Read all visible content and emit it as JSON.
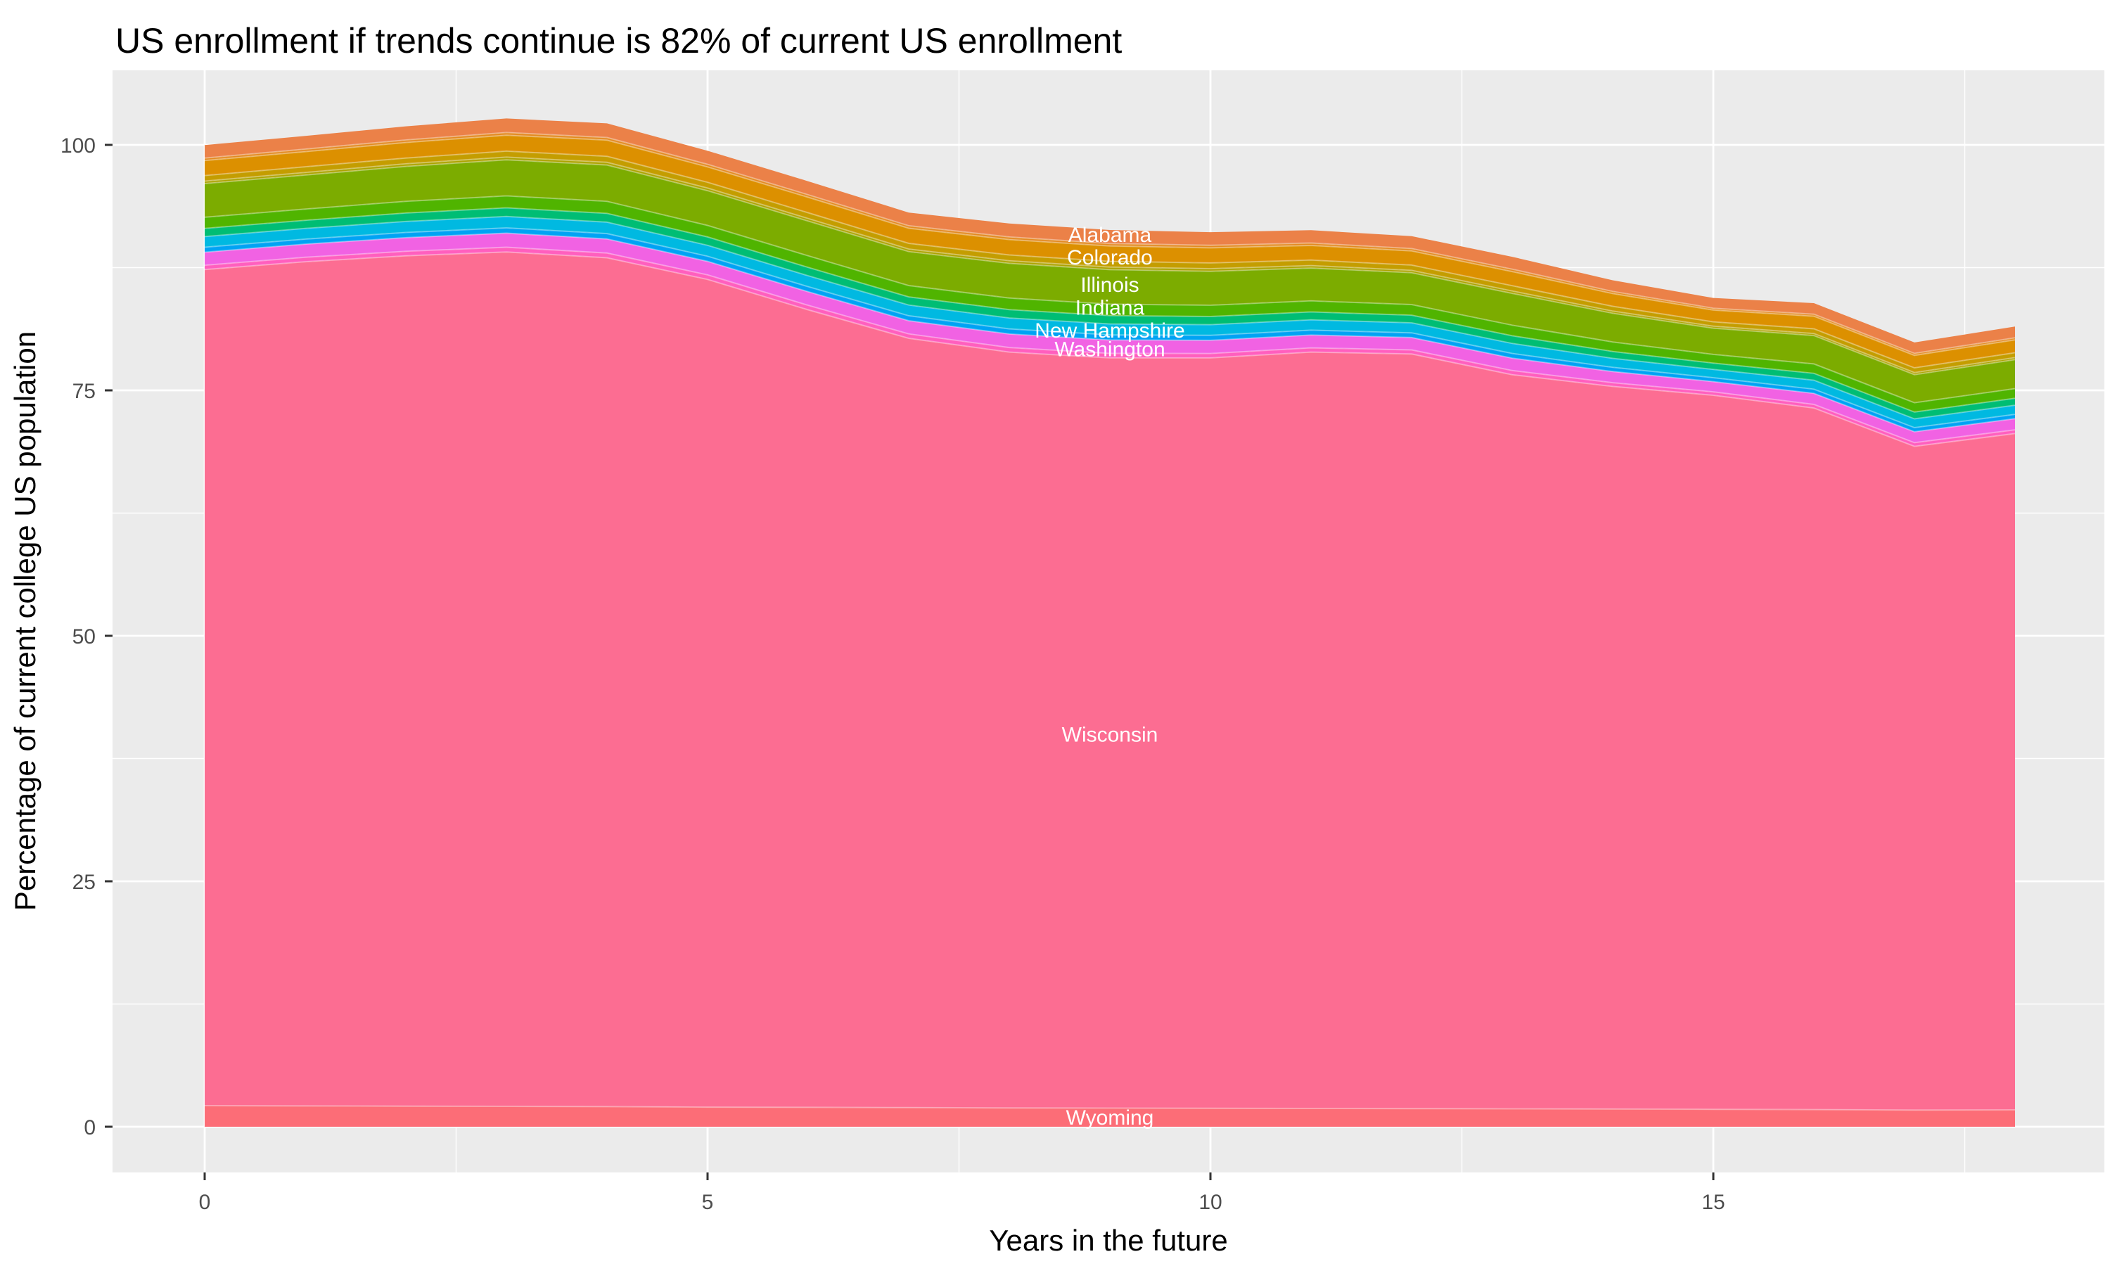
{
  "figure": {
    "title": "US enrollment if trends continue is 82% of current US enrollment",
    "x_axis_title": "Years in the future",
    "y_axis_title": "Percentage of current college US population"
  },
  "colors": {
    "outer_background": "#FFFFFF",
    "panel_background": "#EBEBEB",
    "gridline": "#FFFFFF",
    "tick_mark": "#333333",
    "tick_label": "#4D4D4D",
    "title_text": "#000000",
    "band_separator": "rgba(255,255,255,0.35)",
    "label_text": "#FFFFFF"
  },
  "chart_data": {
    "type": "area",
    "stacked": true,
    "title": "US enrollment if trends continue is 82% of current US enrollment",
    "xlabel": "Years in the future",
    "ylabel": "Percentage of current college US population",
    "x": [
      0,
      1,
      2,
      3,
      4,
      5,
      6,
      7,
      8,
      9,
      10,
      11,
      12,
      13,
      14,
      15,
      16,
      17,
      18
    ],
    "x_ticks": [
      0,
      5,
      10,
      15
    ],
    "y_ticks": [
      0,
      25,
      50,
      75,
      100
    ],
    "x_minor_ticks": [
      2.5,
      7.5,
      12.5,
      17.5
    ],
    "y_minor_ticks": [
      12.5,
      37.5,
      62.5,
      87.5
    ],
    "xlim_display": [
      -0.93,
      19.06
    ],
    "ylim_display": [
      -4.7,
      107.6
    ],
    "grid": true,
    "legend_position": "none",
    "stack_total_percent": [
      100.0,
      100.9,
      101.9,
      102.7,
      102.2,
      99.4,
      96.3,
      93.1,
      92.0,
      91.3,
      91.1,
      91.3,
      90.7,
      88.6,
      86.2,
      84.4,
      83.9,
      79.9,
      81.5
    ],
    "series": [
      {
        "name": "Alabama",
        "labeled": true,
        "color": "#EB8148",
        "values": [
          1.33,
          1.34,
          1.39,
          1.43,
          1.44,
          1.38,
          1.38,
          1.34,
          1.38,
          1.37,
          1.34,
          1.3,
          1.26,
          1.26,
          1.13,
          1.04,
          1.12,
          1.11,
          1.14
        ]
      },
      {
        "name": "unlabeled_band_1",
        "labeled": false,
        "color": "#E38A21",
        "values": [
          0.25,
          0.26,
          0.26,
          0.27,
          0.27,
          0.26,
          0.26,
          0.26,
          0.26,
          0.26,
          0.26,
          0.25,
          0.24,
          0.24,
          0.22,
          0.2,
          0.21,
          0.21,
          0.22
        ]
      },
      {
        "name": "Colorado",
        "labeled": true,
        "color": "#DC9000",
        "values": [
          1.52,
          1.54,
          1.58,
          1.63,
          1.64,
          1.57,
          1.57,
          1.54,
          1.57,
          1.56,
          1.54,
          1.49,
          1.44,
          1.44,
          1.3,
          1.19,
          1.28,
          1.27,
          1.31
        ]
      },
      {
        "name": "unlabeled_band_2",
        "labeled": false,
        "color": "#C49D00",
        "values": [
          0.57,
          0.58,
          0.59,
          0.61,
          0.62,
          0.59,
          0.59,
          0.58,
          0.59,
          0.59,
          0.58,
          0.56,
          0.54,
          0.54,
          0.49,
          0.45,
          0.48,
          0.48,
          0.49
        ]
      },
      {
        "name": "unlabeled_band_3",
        "labeled": false,
        "color": "#ACA300",
        "values": [
          0.25,
          0.26,
          0.26,
          0.27,
          0.27,
          0.26,
          0.26,
          0.26,
          0.26,
          0.26,
          0.26,
          0.25,
          0.24,
          0.24,
          0.22,
          0.2,
          0.21,
          0.21,
          0.22
        ]
      },
      {
        "name": "Illinois",
        "labeled": true,
        "color": "#7CAC00",
        "values": [
          3.43,
          3.46,
          3.56,
          3.67,
          3.7,
          3.54,
          3.54,
          3.46,
          3.54,
          3.51,
          3.46,
          3.35,
          3.24,
          3.24,
          2.92,
          2.67,
          2.89,
          2.86,
          2.94
        ]
      },
      {
        "name": "Indiana",
        "labeled": true,
        "color": "#50B400",
        "values": [
          1.14,
          1.15,
          1.19,
          1.22,
          1.23,
          1.18,
          1.18,
          1.15,
          1.18,
          1.17,
          1.15,
          1.12,
          1.08,
          1.08,
          0.97,
          0.89,
          0.96,
          0.95,
          0.98
        ]
      },
      {
        "name": "unlabeled_band_4",
        "labeled": false,
        "color": "#00BD74",
        "values": [
          0.83,
          0.83,
          0.86,
          0.88,
          0.89,
          0.85,
          0.85,
          0.83,
          0.85,
          0.85,
          0.83,
          0.81,
          0.78,
          0.78,
          0.7,
          0.64,
          0.7,
          0.69,
          0.71
        ]
      },
      {
        "name": "New Hampshire",
        "labeled": true,
        "color": "#00B9E1",
        "values": [
          1.08,
          1.09,
          1.12,
          1.16,
          1.16,
          1.11,
          1.11,
          1.09,
          1.11,
          1.11,
          1.09,
          1.05,
          1.02,
          1.02,
          0.92,
          0.84,
          0.91,
          0.9,
          0.93
        ]
      },
      {
        "name": "unlabeled_band_5",
        "labeled": false,
        "color": "#00A3F4",
        "values": [
          0.51,
          0.51,
          0.53,
          0.54,
          0.55,
          0.52,
          0.52,
          0.51,
          0.52,
          0.52,
          0.51,
          0.5,
          0.48,
          0.48,
          0.43,
          0.4,
          0.43,
          0.42,
          0.44
        ]
      },
      {
        "name": "Washington",
        "labeled": true,
        "color": "#F162E3",
        "values": [
          1.33,
          1.34,
          1.39,
          1.43,
          1.44,
          1.38,
          1.38,
          1.34,
          1.38,
          1.37,
          1.34,
          1.3,
          1.26,
          1.26,
          1.13,
          1.04,
          1.12,
          1.11,
          1.14
        ]
      },
      {
        "name": "unlabeled_band_6",
        "labeled": false,
        "color": "#FF5FBE",
        "values": [
          0.44,
          0.45,
          0.46,
          0.48,
          0.48,
          0.46,
          0.46,
          0.45,
          0.46,
          0.46,
          0.45,
          0.43,
          0.42,
          0.42,
          0.38,
          0.35,
          0.37,
          0.37,
          0.38
        ]
      },
      {
        "name": "Wisconsin",
        "labeled": true,
        "color": "#FC6D92",
        "values": [
          85.15,
          85.98,
          86.6,
          87.02,
          86.45,
          84.3,
          81.22,
          78.35,
          76.98,
          76.4,
          76.42,
          77.04,
          76.85,
          74.77,
          73.6,
          72.72,
          71.45,
          67.6,
          68.88
        ]
      },
      {
        "name": "Wyoming",
        "labeled": true,
        "color": "#FC6D77",
        "values": [
          2.15,
          2.12,
          2.1,
          2.08,
          2.05,
          2.0,
          1.98,
          1.95,
          1.92,
          1.9,
          1.88,
          1.86,
          1.85,
          1.83,
          1.8,
          1.78,
          1.75,
          1.7,
          1.72
        ]
      }
    ],
    "labels": [
      {
        "text": "Alabama",
        "x_year": 9.0,
        "y_value": 90.9
      },
      {
        "text": "Colorado",
        "x_year": 9.0,
        "y_value": 88.6
      },
      {
        "text": "Illinois",
        "x_year": 9.0,
        "y_value": 85.8
      },
      {
        "text": "Indiana",
        "x_year": 9.0,
        "y_value": 83.5
      },
      {
        "text": "New Hampshire",
        "x_year": 9.0,
        "y_value": 81.15
      },
      {
        "text": "Washington",
        "x_year": 9.0,
        "y_value": 79.25
      },
      {
        "text": "Wisconsin",
        "x_year": 9.0,
        "y_value": 40.0
      },
      {
        "text": "Wyoming",
        "x_year": 9.0,
        "y_value": 1.0
      }
    ]
  }
}
